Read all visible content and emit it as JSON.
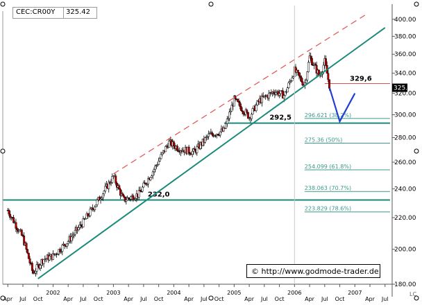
{
  "header": {
    "symbol": "CEC:CR00Y",
    "last_value": "325.42"
  },
  "credit": "© http://www.godmode-trader.de",
  "corner_label": "LC",
  "colors": {
    "candle_up": "#ffffff",
    "candle_down": "#c00000",
    "trend": "#1a8a7a",
    "channel_upper": "#e05050",
    "resistance": "#e05050",
    "projection": "#1f3fd0",
    "fib": "#3a9a8a"
  },
  "chart_data": {
    "type": "candlestick",
    "title": "",
    "ylim": [
      180,
      410
    ],
    "y_scale": "log",
    "y_ticks": [
      180,
      200,
      220,
      240,
      260,
      280,
      300,
      320,
      340,
      360,
      380,
      400
    ],
    "y_tick_labels": [
      "180.00",
      "200.00",
      "220.00",
      "240.00",
      "260.00",
      "280.00",
      "300.00",
      "320.00",
      "340.00",
      "360.00",
      "380.00",
      "400.00"
    ],
    "x_month_labels": [
      "Apr",
      "Jul",
      "Oct",
      "2002",
      "Apr",
      "Jul",
      "Oct",
      "2003",
      "Apr",
      "Jul",
      "Oct",
      "2004",
      "Apr",
      "Jul",
      "Oct",
      "2005",
      "Apr",
      "Jul",
      "Oct",
      "2006",
      "Apr",
      "Jul",
      "Oct",
      "2007",
      "Apr",
      "Jul"
    ],
    "last_price": 325.42,
    "last_price_label": "325.42",
    "close_path": [
      {
        "date": "2001-04",
        "close": 225
      },
      {
        "date": "2001-07",
        "close": 207
      },
      {
        "date": "2001-09",
        "close": 186
      },
      {
        "date": "2001-11",
        "close": 194
      },
      {
        "date": "2002-01",
        "close": 196
      },
      {
        "date": "2002-04",
        "close": 205
      },
      {
        "date": "2002-07",
        "close": 217
      },
      {
        "date": "2002-10",
        "close": 232
      },
      {
        "date": "2003-01",
        "close": 249
      },
      {
        "date": "2003-03",
        "close": 232
      },
      {
        "date": "2003-06",
        "close": 236
      },
      {
        "date": "2003-09",
        "close": 254
      },
      {
        "date": "2003-12",
        "close": 276
      },
      {
        "date": "2004-02",
        "close": 271
      },
      {
        "date": "2004-05",
        "close": 268
      },
      {
        "date": "2004-08",
        "close": 282
      },
      {
        "date": "2004-11",
        "close": 286
      },
      {
        "date": "2005-01",
        "close": 314
      },
      {
        "date": "2005-04",
        "close": 298
      },
      {
        "date": "2005-06",
        "close": 313
      },
      {
        "date": "2005-09",
        "close": 322
      },
      {
        "date": "2005-11",
        "close": 318
      },
      {
        "date": "2006-01",
        "close": 343
      },
      {
        "date": "2006-03",
        "close": 328
      },
      {
        "date": "2006-04",
        "close": 357
      },
      {
        "date": "2006-06",
        "close": 337
      },
      {
        "date": "2006-07",
        "close": 352
      },
      {
        "date": "2006-08",
        "close": 326
      }
    ],
    "horizontal_lines": [
      {
        "value": 232.0,
        "label": "232,0"
      },
      {
        "value": 292.5,
        "label": "292,5"
      },
      {
        "value": 329.6,
        "label": "329,6"
      }
    ],
    "fibonacci_levels": [
      {
        "value": 296.621,
        "label": "296.621 (38.2%)"
      },
      {
        "value": 275.36,
        "label": "275.36 (50%)"
      },
      {
        "value": 254.099,
        "label": "254.099 (61.8%)"
      },
      {
        "value": 238.063,
        "label": "238.063 (70.7%)"
      },
      {
        "value": 223.829,
        "label": "223.829 (78.6%)"
      }
    ],
    "trend_lines": [
      {
        "name": "support",
        "from": {
          "date": "2001-10",
          "value": 183
        },
        "to": {
          "date": "2007-07",
          "value": 390
        }
      },
      {
        "name": "upper-channel",
        "from": {
          "date": "2003-01",
          "value": 251
        },
        "to": {
          "date": "2007-03",
          "value": 405
        }
      }
    ],
    "projection": [
      {
        "date": "2006-08",
        "value": 325
      },
      {
        "date": "2006-10",
        "value": 294
      },
      {
        "date": "2007-01",
        "value": 320
      }
    ],
    "grid": false
  }
}
